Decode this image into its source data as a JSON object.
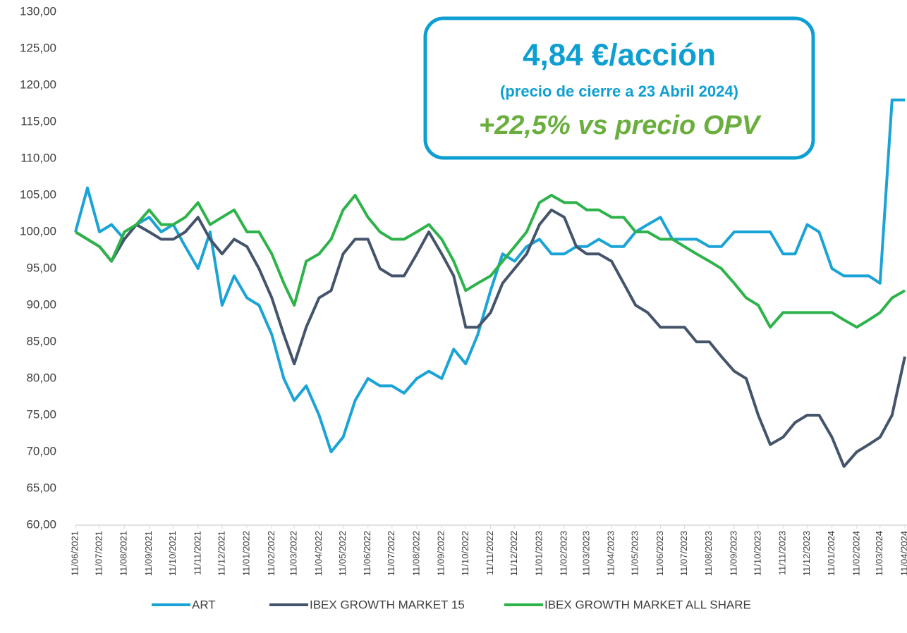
{
  "chart_data": {
    "type": "line",
    "annotations": [
      "4,84 €/acción",
      "(precio de cierre a 23 Abril 2024)",
      "+22,5% vs precio OPV"
    ],
    "x": [
      "11/06/2021",
      "26/06/2021",
      "11/07/2021",
      "26/07/2021",
      "11/08/2021",
      "26/08/2021",
      "11/09/2021",
      "26/09/2021",
      "11/10/2021",
      "26/10/2021",
      "11/11/2021",
      "26/11/2021",
      "11/12/2021",
      "26/12/2021",
      "11/01/2022",
      "26/01/2022",
      "11/02/2022",
      "26/02/2022",
      "11/03/2022",
      "26/03/2022",
      "11/04/2022",
      "26/04/2022",
      "11/05/2022",
      "26/05/2022",
      "11/06/2022",
      "26/06/2022",
      "11/07/2022",
      "26/07/2022",
      "11/08/2022",
      "26/08/2022",
      "11/09/2022",
      "26/09/2022",
      "11/10/2022",
      "26/10/2022",
      "11/11/2022",
      "26/11/2022",
      "11/12/2022",
      "26/12/2022",
      "11/01/2023",
      "26/01/2023",
      "11/02/2023",
      "26/02/2023",
      "11/03/2023",
      "26/03/2023",
      "11/04/2023",
      "26/04/2023",
      "11/05/2023",
      "26/05/2023",
      "11/06/2023",
      "26/06/2023",
      "11/07/2023",
      "26/07/2023",
      "11/08/2023",
      "26/08/2023",
      "11/09/2023",
      "26/09/2023",
      "11/10/2023",
      "26/10/2023",
      "11/11/2023",
      "26/11/2023",
      "11/12/2023",
      "26/12/2023",
      "11/01/2024",
      "26/01/2024",
      "11/02/2024",
      "26/02/2024",
      "11/03/2024",
      "26/03/2024",
      "11/04/2024"
    ],
    "series": [
      {
        "name": "ART",
        "color": "#1aa3d6",
        "values": [
          100,
          106,
          100,
          101,
          99,
          101,
          102,
          100,
          101,
          98,
          95,
          100,
          90,
          94,
          91,
          90,
          86,
          80,
          77,
          79,
          75,
          70,
          72,
          77,
          80,
          79,
          79,
          78,
          80,
          81,
          80,
          84,
          82,
          86,
          92,
          97,
          96,
          98,
          99,
          97,
          97,
          98,
          98,
          99,
          98,
          98,
          100,
          101,
          102,
          99,
          99,
          99,
          98,
          98,
          100,
          100,
          100,
          100,
          97,
          97,
          101,
          100,
          95,
          94,
          94,
          94,
          93,
          118,
          118
        ]
      },
      {
        "name": "IBEX GROWTH MARKET 15",
        "color": "#44546a",
        "values": [
          100,
          99,
          98,
          96,
          99,
          101,
          100,
          99,
          99,
          100,
          102,
          99,
          97,
          99,
          98,
          95,
          91,
          86,
          82,
          87,
          91,
          92,
          97,
          99,
          99,
          95,
          94,
          94,
          97,
          100,
          97,
          94,
          87,
          87,
          89,
          93,
          95,
          97,
          101,
          103,
          102,
          98,
          97,
          97,
          96,
          93,
          90,
          89,
          87,
          87,
          87,
          85,
          85,
          83,
          81,
          80,
          75,
          71,
          72,
          74,
          75,
          75,
          72,
          68,
          70,
          71,
          72,
          75,
          83
        ]
      },
      {
        "name": "IBEX GROWTH MARKET ALL SHARE",
        "color": "#2db34a",
        "values": [
          100,
          99,
          98,
          96,
          100,
          101,
          103,
          101,
          101,
          102,
          104,
          101,
          102,
          103,
          100,
          100,
          97,
          93,
          90,
          96,
          97,
          99,
          103,
          105,
          102,
          100,
          99,
          99,
          100,
          101,
          99,
          96,
          92,
          93,
          94,
          96,
          98,
          100,
          104,
          105,
          104,
          104,
          103,
          103,
          102,
          102,
          100,
          100,
          99,
          99,
          98,
          97,
          96,
          95,
          93,
          91,
          90,
          87,
          89,
          89,
          89,
          89,
          89,
          88,
          87,
          88,
          89,
          91,
          92
        ]
      }
    ],
    "xlim": [
      "11/06/2021",
      "11/04/2024"
    ],
    "xticks": [
      "11/06/2021",
      "11/07/2021",
      "11/08/2021",
      "11/09/2021",
      "11/10/2021",
      "11/11/2021",
      "11/12/2021",
      "11/01/2022",
      "11/02/2022",
      "11/03/2022",
      "11/04/2022",
      "11/05/2022",
      "11/06/2022",
      "11/07/2022",
      "11/08/2022",
      "11/09/2022",
      "11/10/2022",
      "11/11/2022",
      "11/12/2022",
      "11/01/2023",
      "11/02/2023",
      "11/03/2023",
      "11/04/2023",
      "11/05/2023",
      "11/06/2023",
      "11/07/2023",
      "11/08/2023",
      "11/09/2023",
      "11/10/2023",
      "11/11/2023",
      "11/12/2023",
      "11/01/2024",
      "11/02/2024",
      "11/03/2024",
      "11/04/2024"
    ],
    "ylim": [
      60,
      130
    ],
    "yticks": [
      {
        "value": 60,
        "label": "60,00"
      },
      {
        "value": 65,
        "label": "65,00"
      },
      {
        "value": 70,
        "label": "70,00"
      },
      {
        "value": 75,
        "label": "75,00"
      },
      {
        "value": 80,
        "label": "80,00"
      },
      {
        "value": 85,
        "label": "85,00"
      },
      {
        "value": 90,
        "label": "90,00"
      },
      {
        "value": 95,
        "label": "95,00"
      },
      {
        "value": 100,
        "label": "100,00"
      },
      {
        "value": 105,
        "label": "105,00"
      },
      {
        "value": 110,
        "label": "110,00"
      },
      {
        "value": 115,
        "label": "115,00"
      },
      {
        "value": 120,
        "label": "120,00"
      },
      {
        "value": 125,
        "label": "125,00"
      },
      {
        "value": 130,
        "label": "130,00"
      }
    ],
    "legend": "bottom"
  }
}
